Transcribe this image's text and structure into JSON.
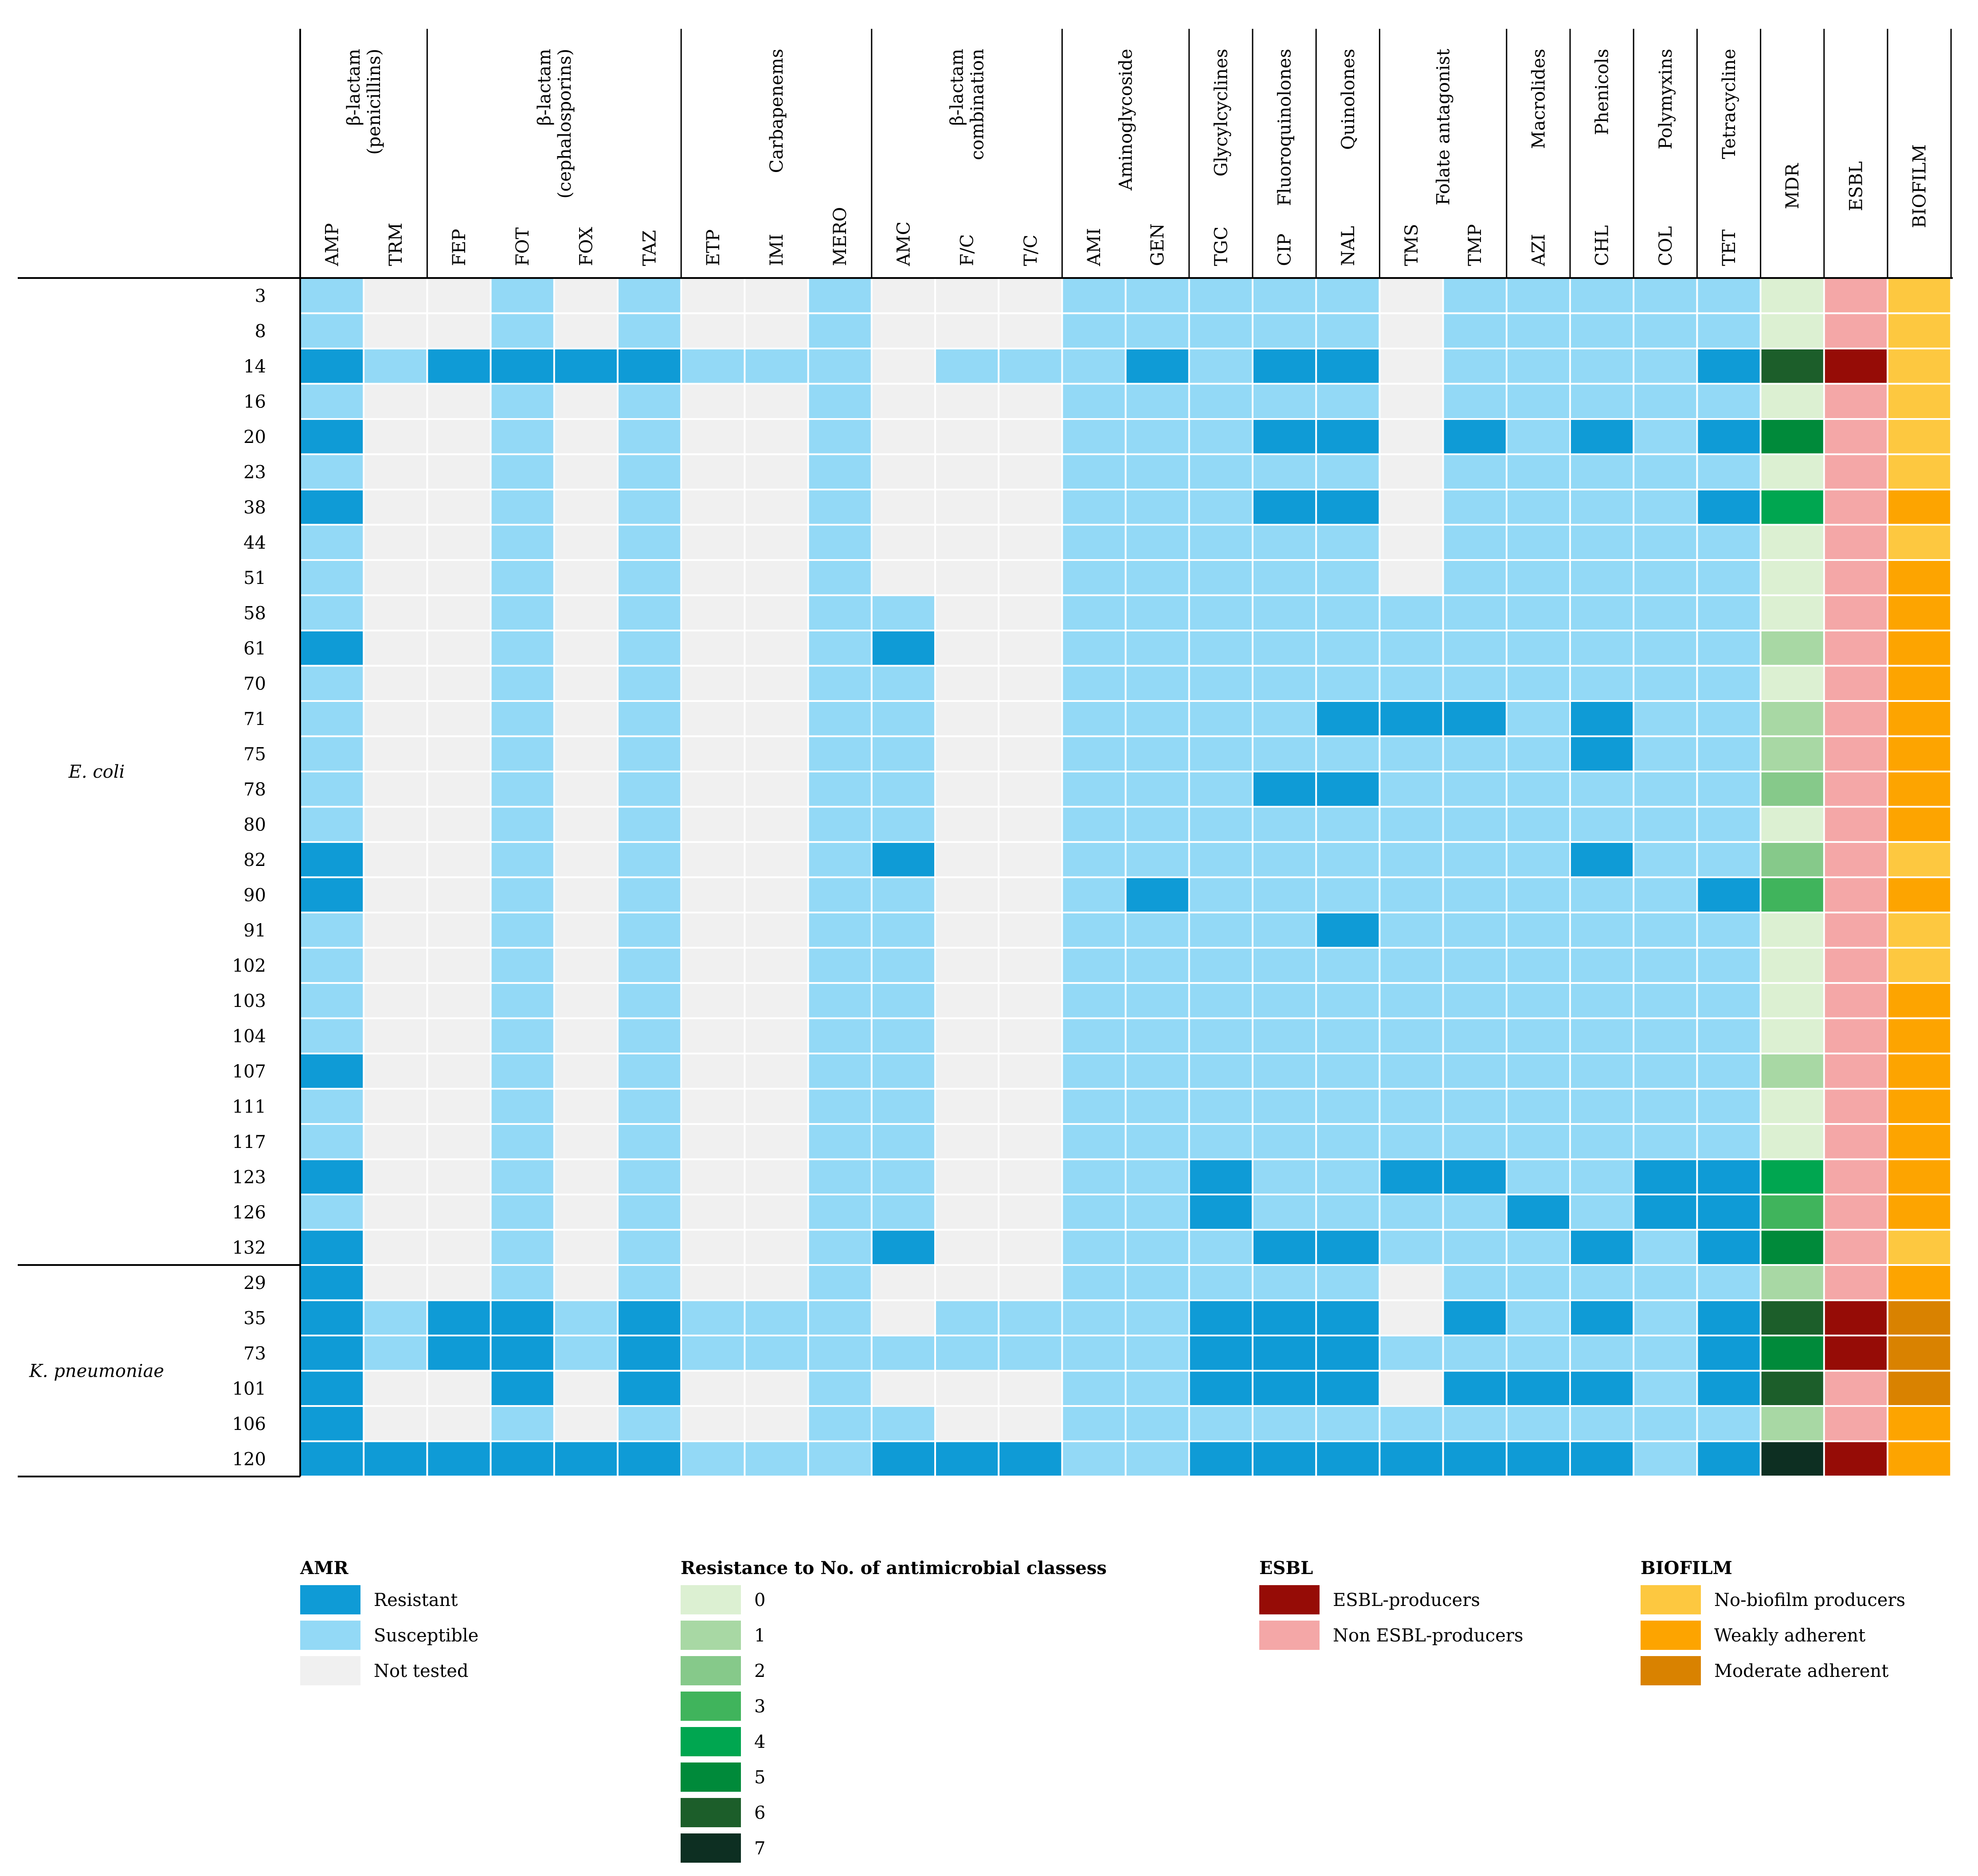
{
  "chart_data": {
    "type": "heatmap",
    "class_headers": [
      "β-lactam\n(penicillins)",
      "β-lactam\n(cephalosporins)",
      "Carbapenems",
      "β-lactam\ncombination",
      "Aminoglycoside",
      "Glycylcyclines",
      "Fluoroquinolones",
      "Quinolones",
      "Folate antagonist",
      "Macrolides",
      "Phenicols",
      "Polymyxins",
      "Tetracycline"
    ],
    "class_spans": [
      2,
      4,
      3,
      3,
      2,
      1,
      1,
      1,
      2,
      1,
      1,
      1,
      1
    ],
    "antibiotics": [
      "AMP",
      "TRM",
      "FEP",
      "FOT",
      "FOX",
      "TAZ",
      "ETP",
      "IMI",
      "MERO",
      "AMC",
      "F/C",
      "T/C",
      "AMI",
      "GEN",
      "TGC",
      "CIP",
      "NAL",
      "TMS",
      "TMP",
      "AZI",
      "CHL",
      "COL",
      "TET"
    ],
    "extra_columns": [
      "MDR",
      "ESBL",
      "BIOFILM"
    ],
    "groups": [
      {
        "name": "E. coli",
        "rows": 28
      },
      {
        "name": "K. pneumoniae",
        "rows": 6
      }
    ],
    "isolates": [
      "3",
      "8",
      "14",
      "16",
      "20",
      "23",
      "38",
      "44",
      "51",
      "58",
      "61",
      "70",
      "71",
      "75",
      "78",
      "80",
      "82",
      "90",
      "91",
      "102",
      "103",
      "104",
      "107",
      "111",
      "117",
      "123",
      "126",
      "132",
      "29",
      "35",
      "73",
      "101",
      "106",
      "120"
    ],
    "amr_codes": "R=Resistant, S=Susceptible, N=Not tested",
    "amr": [
      "SNNSNSNNSNNNSSSSSNSSSSS",
      "SNNSNSNNSNNNSSSSSNSSSSS",
      "RSRRRRSSSNSSSRSRRNSSSSR",
      "SNNSNSNNSNNNSSSSSNSSSSS",
      "RNNSNSNNSNNNSSSRRNRSRSR",
      "SNNSNSNNSNNNSSSSSNSSSSS",
      "RNNSNSNNSNNNSSSRRNSSSSR",
      "SNNSNSNNSNNNSSSSSNSSSSS",
      "SNNSNSNNSNNNSSSSSNSSSSS",
      "SNNSNSNNSSNNSSSSSSSSSSS",
      "RNNSNSNNSRNNSSSSSSSSSSS",
      "SNNSNSNNSSNNSSSSSSSSSSS",
      "SNNSNSNNSSNNSSSSRRRSRSS",
      "SNNSNSNNSSNNSSSSSSSSRSS",
      "SNNSNSNNSSNNSSSRRSSSSSS",
      "SNNSNSNNSSNNSSSSSSSSSSS",
      "RNNSNSNNSRNNSSSSSSSSRSS",
      "RNNSNSNNSSNNSRSSSSSSSSR",
      "SNNSNSNNSSNNSSSSRSSSSSS",
      "SNNSNSNNSSNNSSSSSSSSSSS",
      "SNNSNSNNSSNNSSSSSSSSSSS",
      "SNNSNSNNSSNNSSSSSSSSSSS",
      "RNNSNSNNSSNNSSSSSSSSSSS",
      "SNNSNSNNSSNNSSSSSSSSSSS",
      "SNNSNSNNSSNNSSSSSSSSSSS",
      "RNNSNSNNSSNNSSRSSRRSSRR",
      "SNNSNSNNSSNNSSRSSSSRSRR",
      "RNNSNSNNSRNNSSSRRSSSRSR",
      "RNNSNSNNSNNNSSSSSNSSSSS",
      "RSRRSRSSSNSSSSRRRNRSRSR",
      "RSRRSRSSSSSSSSRRRSSSSSR",
      "RNNRNRNNSNNNSSRRRNRRRSR",
      "RNNSNSNNSSNNSSSSSSSSSSS",
      "RRRRRRSSSRRRSSRRRRRRRSR"
    ],
    "mdr": [
      0,
      0,
      6,
      0,
      5,
      0,
      4,
      0,
      0,
      0,
      1,
      0,
      1,
      1,
      2,
      0,
      2,
      3,
      0,
      0,
      0,
      0,
      1,
      0,
      0,
      4,
      3,
      5,
      1,
      6,
      5,
      6,
      1,
      7
    ],
    "esbl": [
      "N",
      "N",
      "P",
      "N",
      "N",
      "N",
      "N",
      "N",
      "N",
      "N",
      "N",
      "N",
      "N",
      "N",
      "N",
      "N",
      "N",
      "N",
      "N",
      "N",
      "N",
      "N",
      "N",
      "N",
      "N",
      "N",
      "N",
      "N",
      "N",
      "P",
      "P",
      "N",
      "N",
      "P"
    ],
    "biofilm": [
      "0",
      "0",
      "0",
      "0",
      "0",
      "0",
      "W",
      "0",
      "W",
      "W",
      "W",
      "W",
      "W",
      "W",
      "W",
      "W",
      "0",
      "W",
      "0",
      "0",
      "W",
      "W",
      "W",
      "W",
      "W",
      "W",
      "W",
      "0",
      "W",
      "M",
      "M",
      "M",
      "W",
      "W"
    ],
    "colors": {
      "amr": {
        "R": "#0f9bd6",
        "S": "#93d9f6",
        "N": "#f0f0f0"
      },
      "mdr": [
        "#dcf0d2",
        "#a8d8a4",
        "#86c98a",
        "#40b45c",
        "#00a650",
        "#008a3a",
        "#1c5e2a",
        "#0d2f22"
      ],
      "esbl": {
        "P": "#960c06",
        "N": "#f4a7a7"
      },
      "biofilm": {
        "0": "#fdc840",
        "W": "#fda400",
        "M": "#d98200"
      }
    },
    "legends": [
      {
        "title": "AMR",
        "items": [
          {
            "label": "Resistant",
            "color": "#0f9bd6"
          },
          {
            "label": "Susceptible",
            "color": "#93d9f6"
          },
          {
            "label": "Not tested",
            "color": "#f0f0f0"
          }
        ]
      },
      {
        "title": "Resistance to No. of antimicrobial classess",
        "items": [
          {
            "label": "0",
            "color": "#dcf0d2"
          },
          {
            "label": "1",
            "color": "#a8d8a4"
          },
          {
            "label": "2",
            "color": "#86c98a"
          },
          {
            "label": "3",
            "color": "#40b45c"
          },
          {
            "label": "4",
            "color": "#00a650"
          },
          {
            "label": "5",
            "color": "#008a3a"
          },
          {
            "label": "6",
            "color": "#1c5e2a"
          },
          {
            "label": "7",
            "color": "#0d2f22"
          }
        ]
      },
      {
        "title": "ESBL",
        "items": [
          {
            "label": "ESBL-producers",
            "color": "#960c06"
          },
          {
            "label": "Non ESBL-producers",
            "color": "#f4a7a7"
          }
        ]
      },
      {
        "title": "BIOFILM",
        "items": [
          {
            "label": "No-biofilm producers",
            "color": "#fdc840"
          },
          {
            "label": "Weakly adherent",
            "color": "#fda400"
          },
          {
            "label": "Moderate adherent",
            "color": "#d98200"
          }
        ]
      }
    ]
  }
}
